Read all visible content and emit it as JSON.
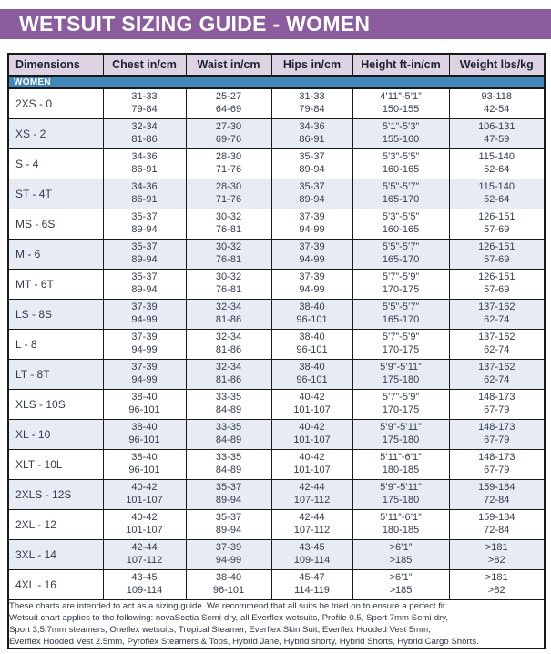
{
  "header": {
    "title": "WETSUIT SIZING GUIDE - WOMEN"
  },
  "colors": {
    "accent_purple": "#8b5c9e",
    "column_header_bg": "#ddd3e2",
    "section_blue": "#4187ba",
    "alt_row_bg": "#e7ebf4",
    "text_dark": "#333b4c",
    "border": "#181818"
  },
  "table": {
    "columns": [
      "Dimensions",
      "Chest in/cm",
      "Waist in/cm",
      "Hips in/cm",
      "Height ft-in/cm",
      "Weight lbs/kg"
    ],
    "section_label": "WOMEN",
    "rows": [
      {
        "label": "2XS - 0",
        "chest": [
          "31-33",
          "79-84"
        ],
        "waist": [
          "25-27",
          "64-69"
        ],
        "hips": [
          "31-33",
          "79-84"
        ],
        "height": [
          "4’11”-5’1”",
          "150-155"
        ],
        "weight": [
          "93-118",
          "42-54"
        ]
      },
      {
        "label": "XS - 2",
        "chest": [
          "32-34",
          "81-86"
        ],
        "waist": [
          "27-30",
          "69-76"
        ],
        "hips": [
          "34-36",
          "86-91"
        ],
        "height": [
          "5’1”-5’3”",
          "155-160"
        ],
        "weight": [
          "106-131",
          "47-59"
        ]
      },
      {
        "label": "S - 4",
        "chest": [
          "34-36",
          "86-91"
        ],
        "waist": [
          "28-30",
          "71-76"
        ],
        "hips": [
          "35-37",
          "89-94"
        ],
        "height": [
          "5’3”-5’5”",
          "160-165"
        ],
        "weight": [
          "115-140",
          "52-64"
        ]
      },
      {
        "label": "ST - 4T",
        "chest": [
          "34-36",
          "86-91"
        ],
        "waist": [
          "28-30",
          "71-76"
        ],
        "hips": [
          "35-37",
          "89-94"
        ],
        "height": [
          "5’5”-5’7”",
          "165-170"
        ],
        "weight": [
          "115-140",
          "52-64"
        ]
      },
      {
        "label": "MS - 6S",
        "chest": [
          "35-37",
          "89-94"
        ],
        "waist": [
          "30-32",
          "76-81"
        ],
        "hips": [
          "37-39",
          "94-99"
        ],
        "height": [
          "5’3”-5’5”",
          "160-165"
        ],
        "weight": [
          "126-151",
          "57-69"
        ]
      },
      {
        "label": "M - 6",
        "chest": [
          "35-37",
          "89-94"
        ],
        "waist": [
          "30-32",
          "76-81"
        ],
        "hips": [
          "37-39",
          "94-99"
        ],
        "height": [
          "5’5”-5’7”",
          "165-170"
        ],
        "weight": [
          "126-151",
          "57-69"
        ]
      },
      {
        "label": "MT - 6T",
        "chest": [
          "35-37",
          "89-94"
        ],
        "waist": [
          "30-32",
          "76-81"
        ],
        "hips": [
          "37-39",
          "94-99"
        ],
        "height": [
          "5’7”-5’9”",
          "170-175"
        ],
        "weight": [
          "126-151",
          "57-69"
        ]
      },
      {
        "label": "LS - 8S",
        "chest": [
          "37-39",
          "94-99"
        ],
        "waist": [
          "32-34",
          "81-86"
        ],
        "hips": [
          "38-40",
          "96-101"
        ],
        "height": [
          "5’5”-5’7”",
          "165-170"
        ],
        "weight": [
          "137-162",
          "62-74"
        ]
      },
      {
        "label": "L - 8",
        "chest": [
          "37-39",
          "94-99"
        ],
        "waist": [
          "32-34",
          "81-86"
        ],
        "hips": [
          "38-40",
          "96-101"
        ],
        "height": [
          "5’7”-5’9”",
          "170-175"
        ],
        "weight": [
          "137-162",
          "62-74"
        ]
      },
      {
        "label": "LT - 8T",
        "chest": [
          "37-39",
          "94-99"
        ],
        "waist": [
          "32-34",
          "81-86"
        ],
        "hips": [
          "38-40",
          "96-101"
        ],
        "height": [
          "5’9”-5’11”",
          "175-180"
        ],
        "weight": [
          "137-162",
          "62-74"
        ]
      },
      {
        "label": "XLS - 10S",
        "chest": [
          "38-40",
          "96-101"
        ],
        "waist": [
          "33-35",
          "84-89"
        ],
        "hips": [
          "40-42",
          "101-107"
        ],
        "height": [
          "5’7”-5’9”",
          "170-175"
        ],
        "weight": [
          "148-173",
          "67-79"
        ]
      },
      {
        "label": "XL - 10",
        "chest": [
          "38-40",
          "96-101"
        ],
        "waist": [
          "33-35",
          "84-89"
        ],
        "hips": [
          "40-42",
          "101-107"
        ],
        "height": [
          "5’9”-5’11”",
          "175-180"
        ],
        "weight": [
          "148-173",
          "67-79"
        ]
      },
      {
        "label": "XLT - 10L",
        "chest": [
          "38-40",
          "96-101"
        ],
        "waist": [
          "33-35",
          "84-89"
        ],
        "hips": [
          "40-42",
          "101-107"
        ],
        "height": [
          "5’11”-6’1”",
          "180-185"
        ],
        "weight": [
          "148-173",
          "67-79"
        ]
      },
      {
        "label": "2XLS - 12S",
        "chest": [
          "40-42",
          "101-107"
        ],
        "waist": [
          "35-37",
          "89-94"
        ],
        "hips": [
          "42-44",
          "107-112"
        ],
        "height": [
          "5’9”-5’11”",
          "175-180"
        ],
        "weight": [
          "159-184",
          "72-84"
        ]
      },
      {
        "label": "2XL - 12",
        "chest": [
          "40-42",
          "101-107"
        ],
        "waist": [
          "35-37",
          "89-94"
        ],
        "hips": [
          "42-44",
          "107-112"
        ],
        "height": [
          "5’11”-6’1”",
          "180-185"
        ],
        "weight": [
          "159-184",
          "72-84"
        ]
      },
      {
        "label": "3XL - 14",
        "chest": [
          "42-44",
          "107-112"
        ],
        "waist": [
          "37-39",
          "94-99"
        ],
        "hips": [
          "43-45",
          "109-114"
        ],
        "height": [
          ">6’1”",
          ">185"
        ],
        "weight": [
          ">181",
          ">82"
        ]
      },
      {
        "label": "4XL - 16",
        "chest": [
          "43-45",
          "109-114"
        ],
        "waist": [
          "38-40",
          "96-101"
        ],
        "hips": [
          "45-47",
          "114-119"
        ],
        "height": [
          ">6’1”",
          ">185"
        ],
        "weight": [
          ">181",
          ">82"
        ]
      }
    ]
  },
  "footer": {
    "lines": [
      "These charts are intended to act as a sizing guide. We recommend that all suits be tried on to ensure a perfect fit.",
      "Wetsuit chart applies to the following: novaScotia Semi-dry, all Everflex wetsuits, Profile 0.5, Sport 7mm Semi-dry,",
      "Sport 3,5,7mm steamers, Oneflex wetsuits, Tropical Steamer, Everflex Skin Suit, Everflex Hooded Vest 5mm,",
      "Everflex Hooded Vest 2.5mm, Pyroflex Steamers & Tops, Hybrid Jane, Hybrid shorty, Hybrid Shorts, Hybrid Cargo Shorts."
    ]
  }
}
